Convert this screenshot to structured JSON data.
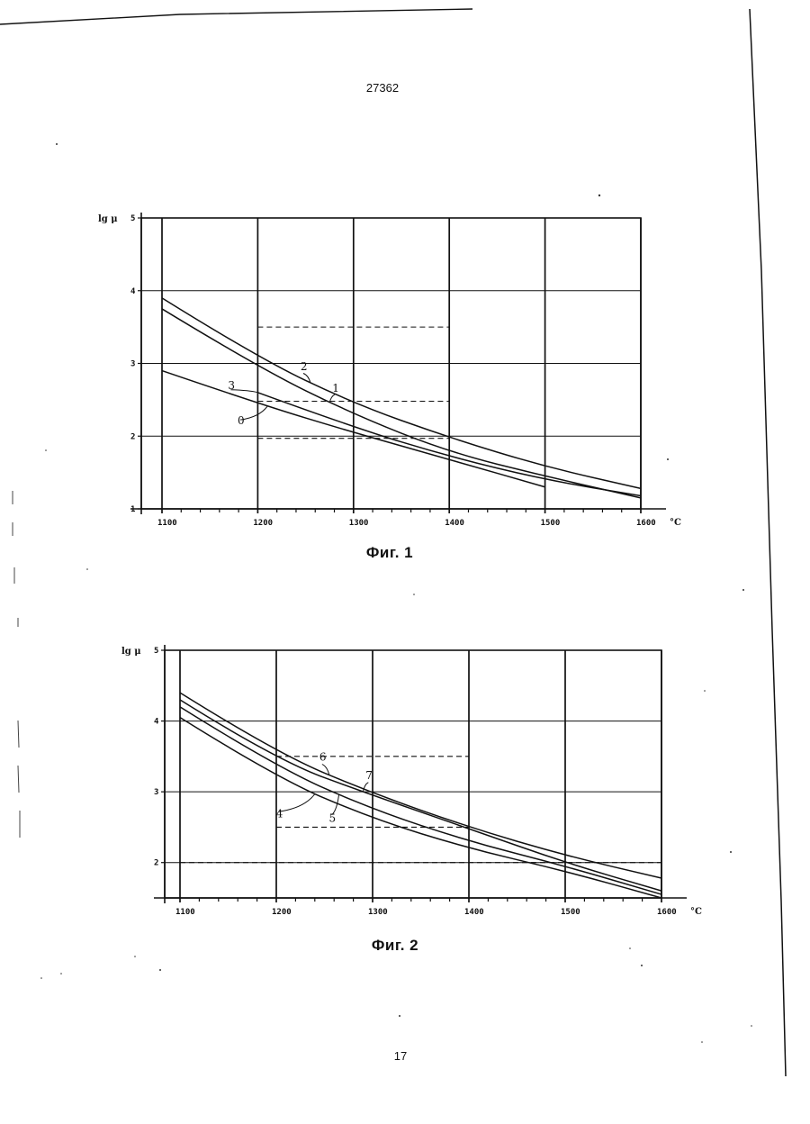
{
  "document_number": "27362",
  "page_number": "17",
  "chart_data": [
    {
      "id": "fig1",
      "type": "line",
      "title": "Фиг. 1",
      "ylabel": "lg μ",
      "xlabel": "°C",
      "x_ticks": [
        "1100",
        "1200",
        "1300",
        "1400",
        "1500",
        "1600"
      ],
      "y_ticks": [
        "1",
        "2",
        "3",
        "4",
        "5"
      ],
      "xlim": [
        1100,
        1600
      ],
      "ylim": [
        1,
        5
      ],
      "grid": true,
      "series": [
        {
          "name": "2",
          "x": [
            1100,
            1200,
            1300,
            1400,
            1500,
            1600
          ],
          "y": [
            3.9,
            3.08,
            2.45,
            1.98,
            1.58,
            1.28
          ]
        },
        {
          "name": "1",
          "x": [
            1100,
            1200,
            1300,
            1400,
            1500,
            1600
          ],
          "y": [
            3.75,
            2.95,
            2.3,
            1.78,
            1.45,
            1.15
          ]
        },
        {
          "name": "3",
          "x": [
            1200,
            1300,
            1400,
            1500,
            1600
          ],
          "y": [
            2.6,
            2.12,
            1.72,
            1.4,
            1.18
          ]
        },
        {
          "name": "0",
          "x": [
            1100,
            1200,
            1300,
            1400,
            1500
          ],
          "y": [
            2.9,
            2.45,
            2.05,
            1.68,
            1.3
          ]
        }
      ],
      "dashed_lines": [
        {
          "x": [
            1200,
            1400
          ],
          "y": 3.5
        },
        {
          "x": [
            1200,
            1400
          ],
          "y": 2.48
        },
        {
          "x": [
            1200,
            1400
          ],
          "y": 1.97
        }
      ]
    },
    {
      "id": "fig2",
      "type": "line",
      "title": "Фиг. 2",
      "ylabel": "lg μ",
      "xlabel": "°C",
      "x_ticks": [
        "1100",
        "1200",
        "1300",
        "1400",
        "1500",
        "1600"
      ],
      "y_ticks": [
        "2",
        "3",
        "4",
        "5"
      ],
      "xlim": [
        1100,
        1600
      ],
      "ylim": [
        1.5,
        5
      ],
      "grid": true,
      "series": [
        {
          "name": "6",
          "x": [
            1100,
            1200,
            1300,
            1400,
            1500,
            1600
          ],
          "y": [
            4.4,
            3.55,
            2.98,
            2.5,
            2.1,
            1.78
          ]
        },
        {
          "name": "7",
          "x": [
            1100,
            1200,
            1300,
            1400,
            1500,
            1600
          ],
          "y": [
            4.3,
            3.45,
            2.95,
            2.48,
            2.0,
            1.6
          ]
        },
        {
          "name": "5",
          "x": [
            1100,
            1200,
            1300,
            1400,
            1500,
            1600
          ],
          "y": [
            4.2,
            3.35,
            2.75,
            2.3,
            1.95,
            1.55
          ]
        },
        {
          "name": "4",
          "x": [
            1100,
            1200,
            1300,
            1400,
            1500,
            1600
          ],
          "y": [
            4.05,
            3.2,
            2.62,
            2.2,
            1.88,
            1.5
          ]
        }
      ],
      "dashed_lines": [
        {
          "x": [
            1200,
            1400
          ],
          "y": 3.5
        },
        {
          "x": [
            1200,
            1400
          ],
          "y": 2.5
        },
        {
          "x": [
            1100,
            1600
          ],
          "y": 2.0
        }
      ]
    }
  ]
}
